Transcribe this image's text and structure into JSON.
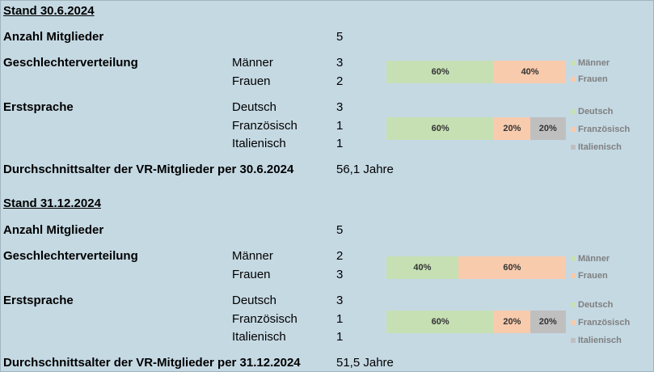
{
  "colors": {
    "background": "#c5d9e3",
    "green": "#c6e0b4",
    "orange": "#f8cbad",
    "gray": "#bfbfbf"
  },
  "section1": {
    "heading": "Stand 30.6.2024",
    "members_label": "Anzahl Mitglieder",
    "members_value": "5",
    "gender_label": "Geschlechterverteilung",
    "gender_rows": [
      {
        "label": "Männer",
        "value": "3"
      },
      {
        "label": "Frauen",
        "value": "2"
      }
    ],
    "gender_chart": {
      "segments": [
        {
          "label": "60%",
          "value": 60,
          "color": "green"
        },
        {
          "label": "40%",
          "value": 40,
          "color": "orange"
        }
      ],
      "legend": [
        "Männer",
        "Frauen"
      ]
    },
    "lang_label": "Erstsprache",
    "lang_rows": [
      {
        "label": "Deutsch",
        "value": "3"
      },
      {
        "label": "Französisch",
        "value": "1"
      },
      {
        "label": "Italienisch",
        "value": "1"
      }
    ],
    "lang_chart": {
      "segments": [
        {
          "label": "60%",
          "value": 60,
          "color": "green"
        },
        {
          "label": "20%",
          "value": 20,
          "color": "orange"
        },
        {
          "label": "20%",
          "value": 20,
          "color": "gray"
        }
      ],
      "legend": [
        "Deutsch",
        "Französisch",
        "Italienisch"
      ]
    },
    "age_label": "Durchschnittsalter der VR-Mitglieder per 30.6.2024",
    "age_value": "56,1 Jahre"
  },
  "section2": {
    "heading": "Stand 31.12.2024",
    "members_label": "Anzahl Mitglieder",
    "members_value": "5",
    "gender_label": "Geschlechterverteilung",
    "gender_rows": [
      {
        "label": "Männer",
        "value": "2"
      },
      {
        "label": "Frauen",
        "value": "3"
      }
    ],
    "gender_chart": {
      "segments": [
        {
          "label": "40%",
          "value": 40,
          "color": "green"
        },
        {
          "label": "60%",
          "value": 60,
          "color": "orange"
        }
      ],
      "legend": [
        "Männer",
        "Frauen"
      ]
    },
    "lang_label": "Erstsprache",
    "lang_rows": [
      {
        "label": "Deutsch",
        "value": "3"
      },
      {
        "label": "Französisch",
        "value": "1"
      },
      {
        "label": "Italienisch",
        "value": "1"
      }
    ],
    "lang_chart": {
      "segments": [
        {
          "label": "60%",
          "value": 60,
          "color": "green"
        },
        {
          "label": "20%",
          "value": 20,
          "color": "orange"
        },
        {
          "label": "20%",
          "value": 20,
          "color": "gray"
        }
      ],
      "legend": [
        "Deutsch",
        "Französisch",
        "Italienisch"
      ]
    },
    "age_label": "Durchschnittsalter der VR-Mitglieder per 31.12.2024",
    "age_value": "51,5 Jahre"
  }
}
